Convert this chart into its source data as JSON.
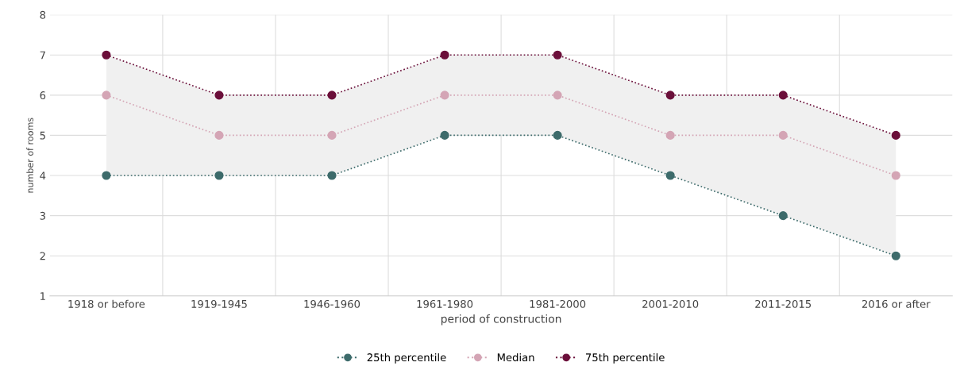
{
  "chart_data": {
    "type": "line",
    "xlabel": "period of construction",
    "ylabel": "number of rooms",
    "categories": [
      "1918 or before",
      "1919-1945",
      "1946-1960",
      "1961-1980",
      "1981-2000",
      "2001-2010",
      "2011-2015",
      "2016 or after"
    ],
    "series": [
      {
        "name": "25th percentile",
        "color": "#3d6b6b",
        "values": [
          4,
          4,
          4,
          5,
          5,
          4,
          3,
          2
        ]
      },
      {
        "name": "Median",
        "color": "#d4a5b5",
        "values": [
          6,
          5,
          5,
          6,
          6,
          5,
          5,
          4
        ],
        "lower": [
          4,
          4,
          4,
          5,
          5,
          4,
          3,
          2
        ],
        "upper": [
          7,
          6,
          6,
          7,
          7,
          6,
          6,
          5
        ]
      },
      {
        "name": "75th percentile",
        "color": "#6b0f3a",
        "values": [
          7,
          6,
          6,
          7,
          7,
          6,
          6,
          5
        ]
      }
    ],
    "ylim": [
      1,
      8
    ],
    "yticks": [
      1,
      2,
      3,
      4,
      5,
      6,
      7,
      8
    ],
    "grid": true,
    "legend": "bottom",
    "marker": "circle",
    "line_style": "dotted"
  }
}
